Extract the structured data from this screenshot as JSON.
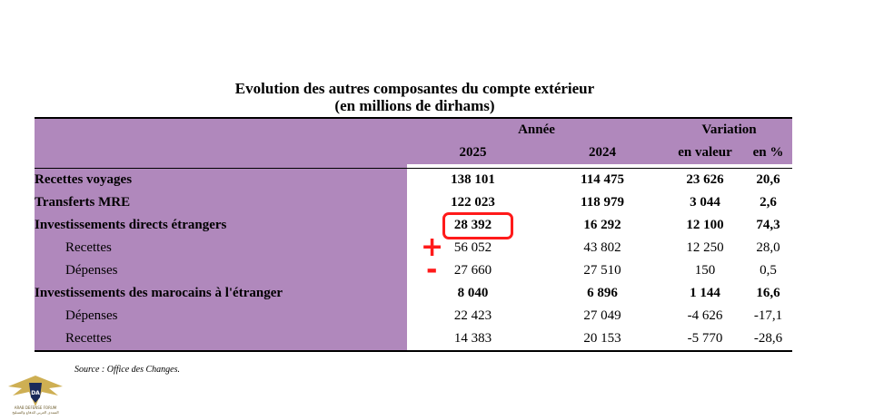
{
  "title": {
    "line1": "Evolution des autres composantes du compte extérieur",
    "line2": "(en millions de dirhams)"
  },
  "header": {
    "annee": "Année",
    "variation": "Variation",
    "col_2025": "2025",
    "col_2024": "2024",
    "en_valeur": "en valeur",
    "en_pct": "en %"
  },
  "rows": [
    {
      "label": "Recettes voyages",
      "v2025": "138 101",
      "v2024": "114 475",
      "val": "23 626",
      "pct": "20,6"
    },
    {
      "label": "Transferts MRE",
      "v2025": "122 023",
      "v2024": "118 979",
      "val": "3 044",
      "pct": "2,6"
    },
    {
      "label": "Investissements directs étrangers",
      "v2025": "28 392",
      "v2024": "16 292",
      "val": "12 100",
      "pct": "74,3"
    },
    {
      "label": "Recettes",
      "v2025": "56 052",
      "v2024": "43 802",
      "val": "12 250",
      "pct": "28,0"
    },
    {
      "label": "Dépenses",
      "v2025": "27 660",
      "v2024": "27 510",
      "val": "150",
      "pct": "0,5"
    },
    {
      "label": "Investissements des marocains à l'étranger",
      "v2025": "8 040",
      "v2024": "6 896",
      "val": "1 144",
      "pct": "16,6"
    },
    {
      "label": "Dépenses",
      "v2025": "22 423",
      "v2024": "27 049",
      "val": "-4 626",
      "pct": "-17,1"
    },
    {
      "label": "Recettes",
      "v2025": "14 383",
      "v2024": "20 153",
      "val": "-5 770",
      "pct": "-28,6"
    }
  ],
  "source": "Source : Office des Changes.",
  "annotations": {
    "plus": "+",
    "minus": "-"
  },
  "logo": {
    "text_line1": "ARAB DEFENSE FORUM",
    "text_line2": "المنتدى العربي للدفاع والتسليح",
    "initials": "DA"
  },
  "colors": {
    "header_bg": "#b088bc",
    "annotation": "#ff1a1a"
  }
}
